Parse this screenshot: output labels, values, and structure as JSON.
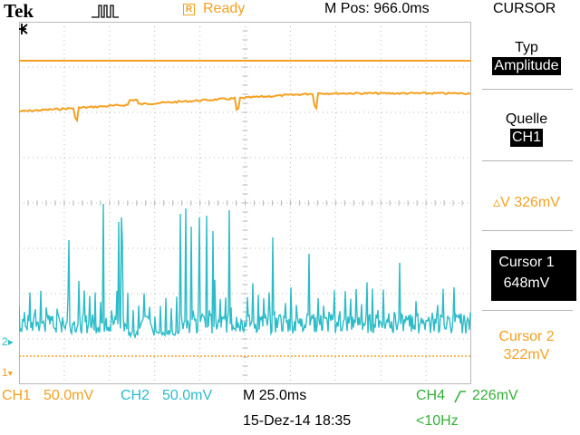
{
  "header": {
    "brand": "Tek",
    "trigger_icon": "trigger-pulse-icon",
    "status_badge": "R",
    "status": "Ready",
    "mpos": "M Pos: 966.0ms",
    "menu_title": "CURSOR"
  },
  "side_menu": {
    "typ_label": "Typ",
    "typ_value": "Amplitude",
    "quelle_label": "Quelle",
    "quelle_value": "CH1",
    "delta": "▵V 326mV",
    "cursor1_label": "Cursor 1",
    "cursor1_value": "648mV",
    "cursor2_label": "Cursor 2",
    "cursor2_value": "322mV"
  },
  "markers": {
    "ch1": "1",
    "ch2": "2"
  },
  "footer": {
    "ch1_label": "CH1",
    "ch1_scale": "50.0mV",
    "ch2_label": "CH2",
    "ch2_scale": "50.0mV",
    "timebase": "M 25.0ms",
    "ch4_label": "CH4",
    "trigger_level": "226mV",
    "date": "15-Dez-14 18:35",
    "frequency": "<10Hz"
  },
  "colors": {
    "ch1": "#f5a020",
    "ch2": "#2bbcc8",
    "ch4": "#34b038",
    "grid": "#b9b9b9"
  }
}
